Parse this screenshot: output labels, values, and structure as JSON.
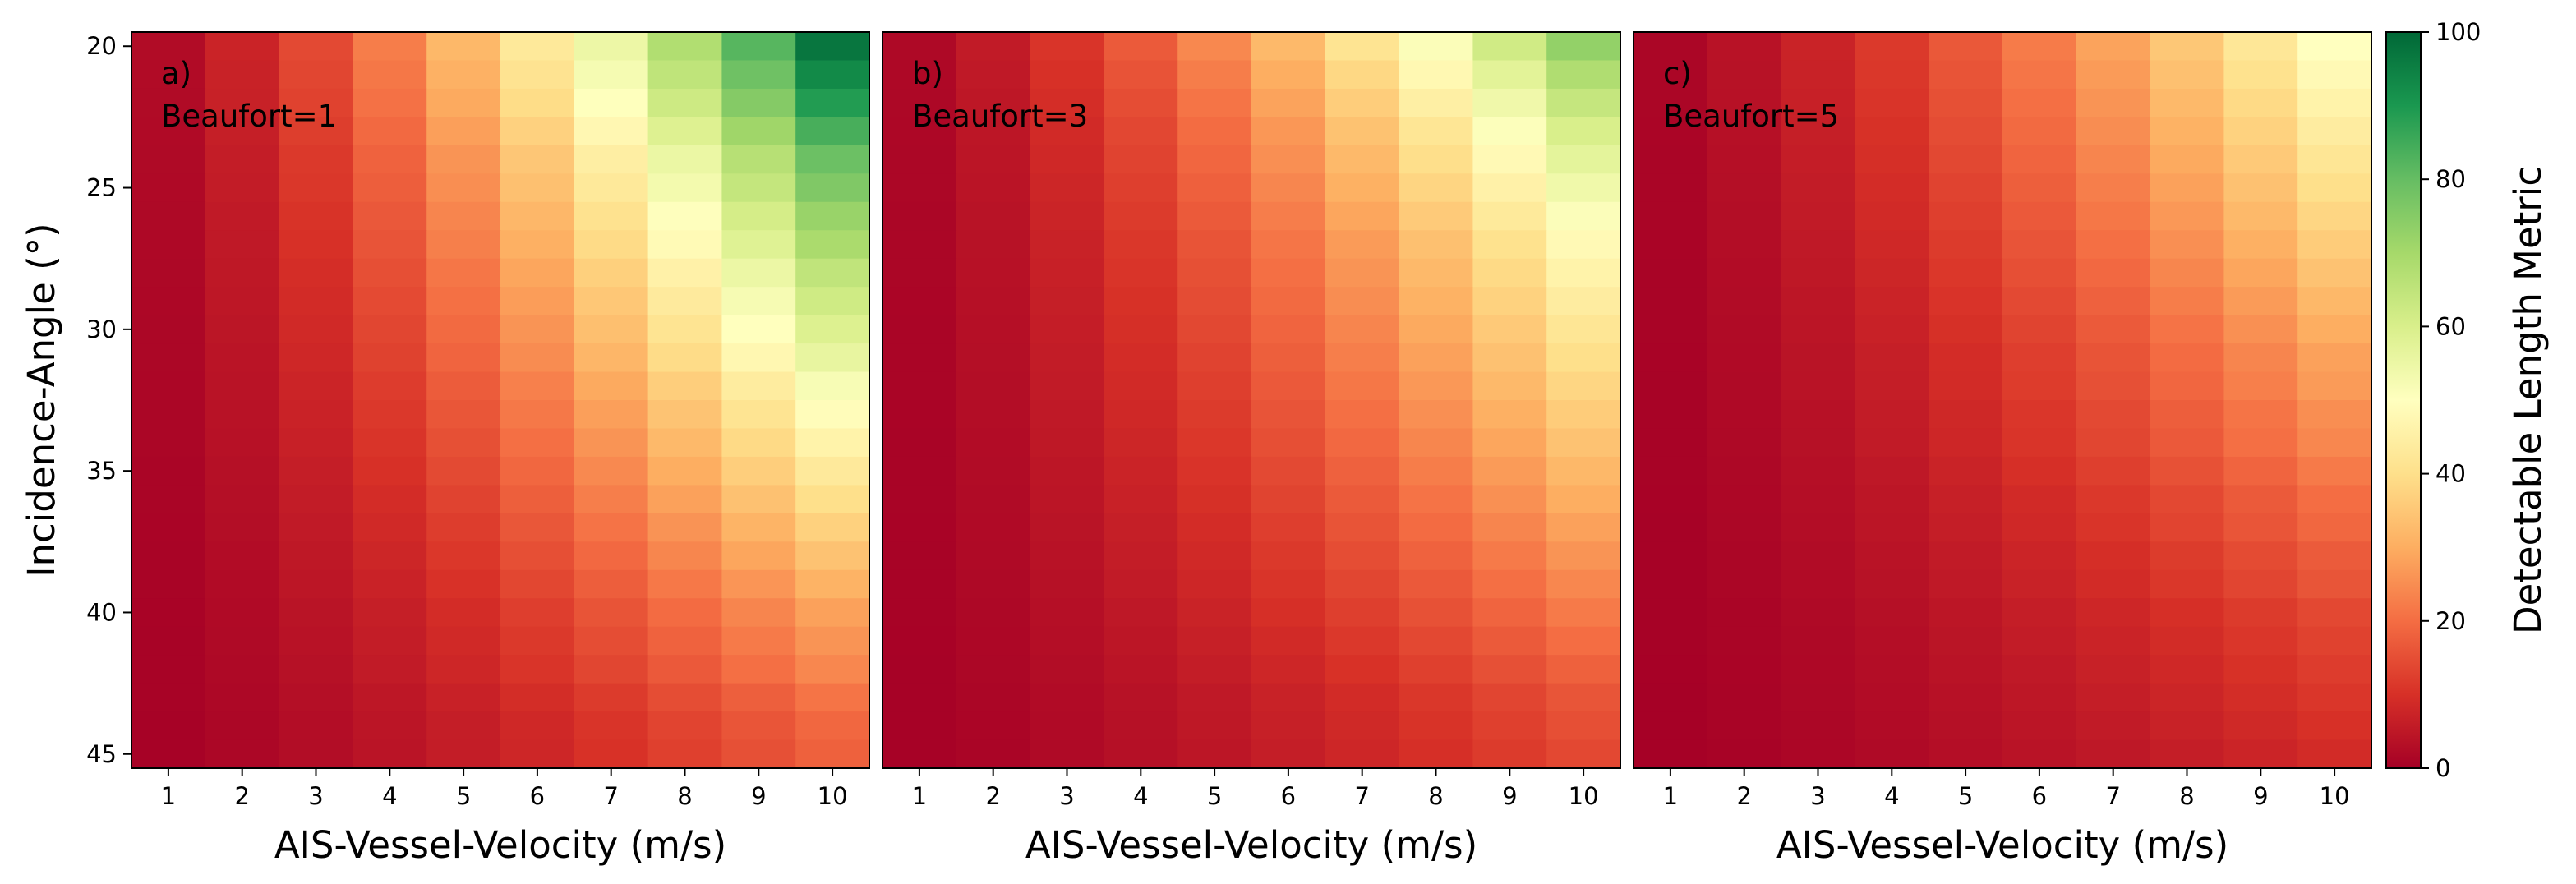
{
  "chart_data": [
    {
      "type": "heatmap",
      "panel_label": "a)",
      "condition": "Beaufort=1",
      "beaufort": 1,
      "x": [
        1,
        2,
        3,
        4,
        5,
        6,
        7,
        8,
        9,
        10
      ],
      "y": [
        20,
        21,
        22,
        23,
        24,
        25,
        26,
        27,
        28,
        29,
        30,
        31,
        32,
        33,
        34,
        35,
        36,
        37,
        38,
        39,
        40,
        41,
        42,
        43,
        44,
        45
      ],
      "peak_value_x10": [
        97,
        93,
        89,
        84,
        79,
        76,
        72,
        69,
        65,
        62,
        59,
        56,
        52,
        49,
        46,
        43,
        40,
        37,
        34,
        31,
        28,
        26,
        24,
        21,
        19,
        18
      ],
      "xlabel": "AIS-Vessel-Velocity (m/s)",
      "ylabel": "Incidence-Angle (°)",
      "xticks": [
        "1",
        "2",
        "3",
        "4",
        "5",
        "6",
        "7",
        "8",
        "9",
        "10"
      ],
      "yticks": [
        "20",
        "25",
        "30",
        "35",
        "40",
        "45"
      ]
    },
    {
      "type": "heatmap",
      "panel_label": "b)",
      "condition": "Beaufort=3",
      "beaufort": 3,
      "x": [
        1,
        2,
        3,
        4,
        5,
        6,
        7,
        8,
        9,
        10
      ],
      "y": [
        20,
        21,
        22,
        23,
        24,
        25,
        26,
        27,
        28,
        29,
        30,
        31,
        32,
        33,
        34,
        35,
        36,
        37,
        38,
        39,
        40,
        41,
        42,
        43,
        44,
        45
      ],
      "peak_value_x10": [
        73,
        68,
        64,
        60,
        57,
        54,
        51,
        48,
        46,
        44,
        42,
        40,
        38,
        36,
        34,
        32,
        30,
        28,
        26,
        24,
        22,
        20,
        18,
        16,
        15,
        14
      ],
      "xlabel": "AIS-Vessel-Velocity (m/s)",
      "xticks": [
        "1",
        "2",
        "3",
        "4",
        "5",
        "6",
        "7",
        "8",
        "9",
        "10"
      ]
    },
    {
      "type": "heatmap",
      "panel_label": "c)",
      "condition": "Beaufort=5",
      "beaufort": 5,
      "x": [
        1,
        2,
        3,
        4,
        5,
        6,
        7,
        8,
        9,
        10
      ],
      "y": [
        20,
        21,
        22,
        23,
        24,
        25,
        26,
        27,
        28,
        29,
        30,
        31,
        32,
        33,
        34,
        35,
        36,
        37,
        38,
        39,
        40,
        41,
        42,
        43,
        44,
        45
      ],
      "peak_value_x10": [
        50,
        48,
        46,
        44,
        42,
        40,
        38,
        36,
        34,
        32,
        30,
        28,
        27,
        25,
        24,
        22,
        20,
        19,
        17,
        16,
        14,
        13,
        12,
        11,
        10,
        9
      ],
      "xlabel": "AIS-Vessel-Velocity (m/s)",
      "xticks": [
        "1",
        "2",
        "3",
        "4",
        "5",
        "6",
        "7",
        "8",
        "9",
        "10"
      ]
    }
  ],
  "colorbar": {
    "label": "Detectable Length Metric",
    "range": [
      0,
      100
    ],
    "ticks": [
      "0",
      "20",
      "40",
      "60",
      "80",
      "100"
    ],
    "colormap": "RdYlGn",
    "stops": [
      "#a50026",
      "#d73027",
      "#f46d43",
      "#fdae61",
      "#fee08b",
      "#ffffbf",
      "#d9ef8b",
      "#a6d96a",
      "#66bd63",
      "#1a9850",
      "#006837"
    ]
  }
}
